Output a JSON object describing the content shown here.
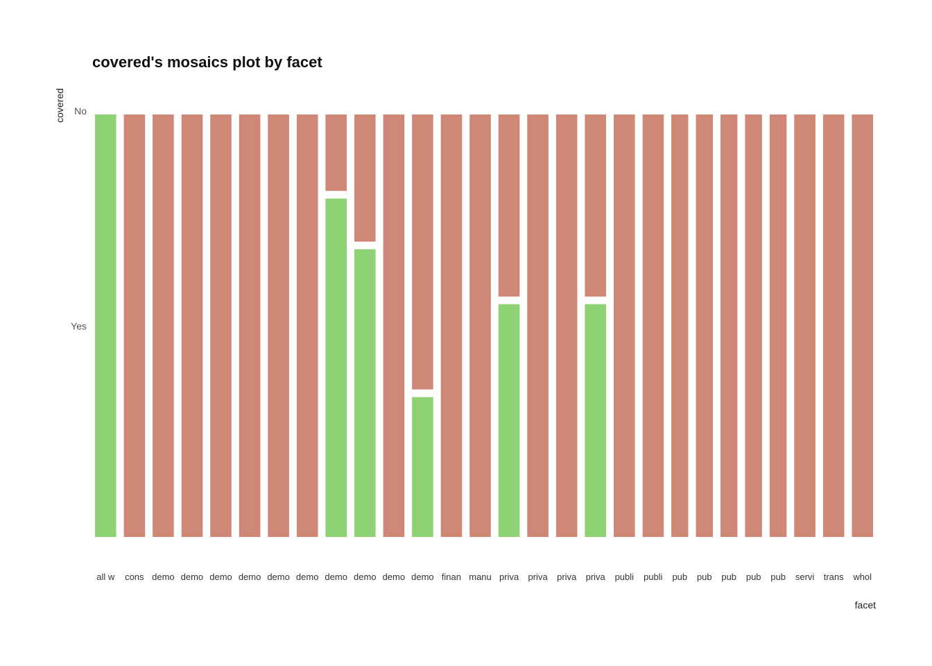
{
  "chart_data": {
    "type": "bar",
    "subtype": "mosaic",
    "title": "covered's mosaics plot by facet",
    "xlabel": "facet",
    "ylabel": "covered",
    "y_categories": [
      "No",
      "Yes"
    ],
    "categories": [
      "all w",
      "cons",
      "demo",
      "demo",
      "demo",
      "demo",
      "demo",
      "demo",
      "demo",
      "demo",
      "demo",
      "demo",
      "finan",
      "manu",
      "priva",
      "priva",
      "priva",
      "priva",
      "publi",
      "publi",
      "pub",
      "pub",
      "pub",
      "pub",
      "pub",
      "servi",
      "trans",
      "whol"
    ],
    "widths": [
      1,
      1,
      1,
      1,
      1,
      1,
      1,
      1,
      1,
      1,
      1,
      1,
      1,
      1,
      1,
      1,
      1,
      1,
      1,
      1,
      0.8,
      0.8,
      0.8,
      0.8,
      0.8,
      1,
      1,
      1
    ],
    "series": [
      {
        "name": "Yes",
        "values": [
          1,
          0,
          0,
          0,
          0,
          0,
          0,
          0,
          0.81,
          0.69,
          0,
          0.34,
          0,
          0,
          0.56,
          0,
          0,
          0.56,
          0,
          0,
          0,
          0,
          0,
          0,
          0,
          0,
          0,
          0
        ]
      },
      {
        "name": "No",
        "values": [
          0,
          1,
          1,
          1,
          1,
          1,
          1,
          1,
          0.19,
          0.31,
          1,
          0.66,
          1,
          1,
          0.44,
          1,
          1,
          0.44,
          1,
          1,
          1,
          1,
          1,
          1,
          1,
          1,
          1,
          1
        ]
      }
    ],
    "ylim": [
      0,
      1
    ],
    "grid": false,
    "legend": "none",
    "colors": {
      "Yes": "#8fd175",
      "No": "#d08876"
    }
  }
}
